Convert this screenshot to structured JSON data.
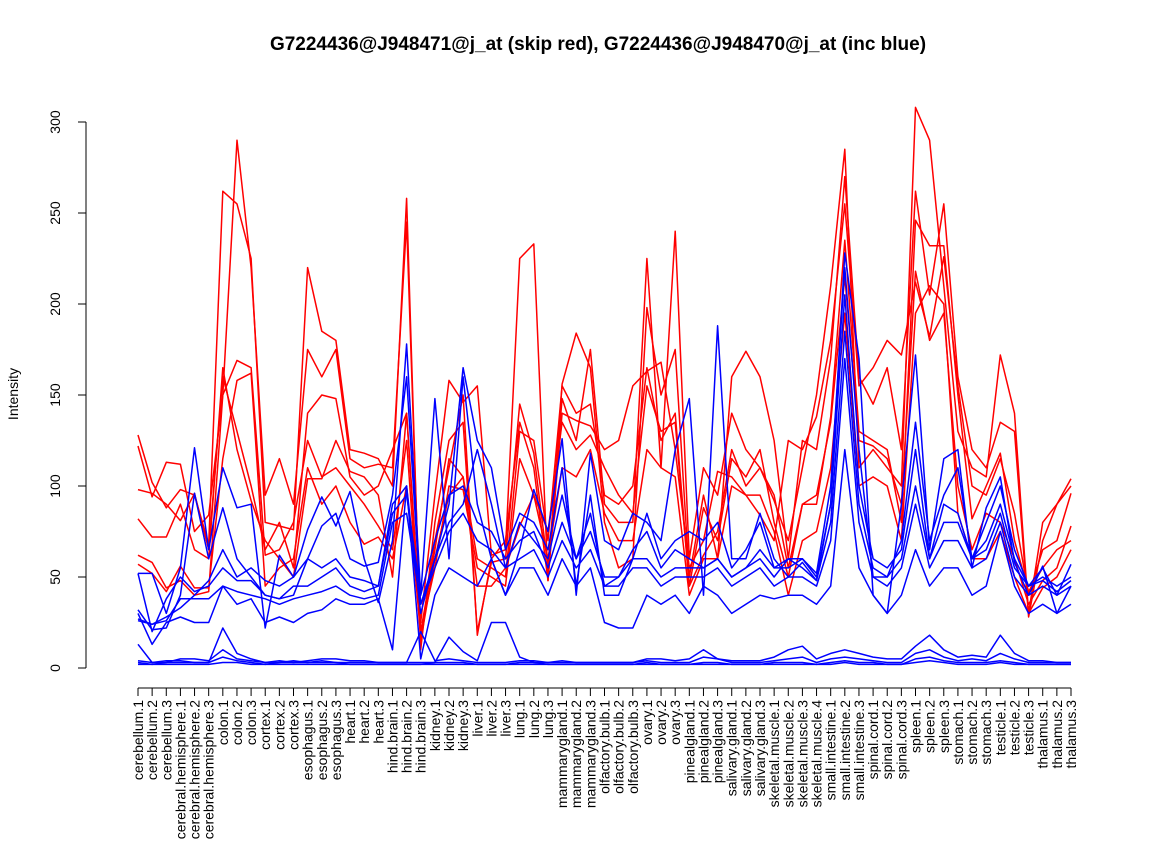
{
  "chart_data": {
    "type": "line",
    "title": "G7224436@J948471@j_at (skip red), G7224436@J948470@j_at (inc blue)",
    "xlabel": "",
    "ylabel": "Intensity",
    "ylim": [
      0,
      300
    ],
    "yticks": [
      0,
      50,
      100,
      150,
      200,
      250,
      300
    ],
    "grid": false,
    "legend": "none",
    "categories": [
      "cerebellum.1",
      "cerebellum.2",
      "cerebellum.3",
      "cerebral.hemisphere.1",
      "cerebral.hemisphere.2",
      "cerebral.hemisphere.3",
      "colon.1",
      "colon.2",
      "colon.3",
      "cortex.1",
      "cortex.2",
      "cortex.3",
      "esophagus.1",
      "esophagus.2",
      "esophagus.3",
      "heart.1",
      "heart.2",
      "heart.3",
      "hind.brain.1",
      "hind.brain.2",
      "hind.brain.3",
      "kidney.1",
      "kidney.2",
      "kidney.3",
      "liver.1",
      "liver.2",
      "liver.3",
      "lung.1",
      "lung.2",
      "lung.3",
      "mammarygland.1",
      "mammarygland.2",
      "mammarygland.3",
      "olfactory.bulb.1",
      "olfactory.bulb.2",
      "olfactory.bulb.3",
      "ovary.1",
      "ovary.2",
      "ovary.3",
      "pinealgland.1",
      "pinealgland.2",
      "pinealgland.3",
      "salivary.gland.1",
      "salivary.gland.2",
      "salivary.gland.3",
      "skeletal.muscle.1",
      "skeletal.muscle.2",
      "skeletal.muscle.3",
      "skeletal.muscle.4",
      "small.intestine.1",
      "small.intestine.2",
      "small.intestine.3",
      "spinal.cord.1",
      "spinal.cord.2",
      "spinal.cord.3",
      "spleen.1",
      "spleen.2",
      "spleen.3",
      "stomach.1",
      "stomach.2",
      "stomach.3",
      "testicle.1",
      "testicle.2",
      "testicle.3",
      "thalamus.1",
      "thalamus.2",
      "thalamus.3"
    ],
    "series": [
      {
        "name": "skip red 1",
        "color": "#ff0000",
        "values": [
          128,
          102,
          88,
          98,
          95,
          68,
          262,
          255,
          225,
          80,
          78,
          76,
          220,
          185,
          180,
          120,
          118,
          115,
          100,
          258,
          10,
          80,
          125,
          135,
          20,
          58,
          60,
          145,
          118,
          55,
          148,
          125,
          175,
          90,
          80,
          80,
          225,
          110,
          240,
          60,
          110,
          95,
          140,
          120,
          110,
          92,
          70,
          110,
          150,
          210,
          285,
          110,
          120,
          110,
          100,
          308,
          290,
          210,
          130,
          110,
          105,
          172,
          140,
          30,
          80,
          90,
          104
        ]
      },
      {
        "name": "skip red 2",
        "color": "#ff0000",
        "values": [
          122,
          94,
          113,
          112,
          75,
          84,
          150,
          290,
          220,
          95,
          115,
          90,
          175,
          160,
          175,
          115,
          110,
          112,
          110,
          245,
          15,
          70,
          110,
          150,
          18,
          60,
          70,
          135,
          110,
          48,
          156,
          184,
          165,
          80,
          55,
          60,
          198,
          150,
          175,
          50,
          95,
          60,
          160,
          174,
          160,
          125,
          60,
          125,
          120,
          170,
          270,
          160,
          145,
          165,
          120,
          262,
          205,
          255,
          160,
          120,
          110,
          135,
          130,
          28,
          70,
          90,
          100
        ]
      },
      {
        "name": "skip red 3",
        "color": "#ff0000",
        "values": [
          98,
          96,
          90,
          81,
          96,
          65,
          160,
          130,
          100,
          65,
          80,
          55,
          140,
          150,
          148,
          105,
          95,
          100,
          120,
          140,
          25,
          95,
          158,
          146,
          155,
          62,
          65,
          225,
          233,
          48,
          140,
          136,
          133,
          120,
          125,
          155,
          163,
          168,
          120,
          55,
          70,
          108,
          105,
          95,
          84,
          70,
          125,
          120,
          138,
          180,
          255,
          155,
          165,
          180,
          172,
          212,
          182,
          226,
          155,
          100,
          95,
          115,
          85,
          40,
          65,
          70,
          96
        ]
      },
      {
        "name": "skip red 4",
        "color": "#ff0000",
        "values": [
          82,
          72,
          72,
          90,
          65,
          60,
          165,
          120,
          92,
          70,
          60,
          50,
          104,
          104,
          125,
          108,
          105,
          95,
          50,
          140,
          20,
          65,
          115,
          105,
          45,
          45,
          55,
          78,
          95,
          75,
          135,
          120,
          128,
          110,
          95,
          85,
          155,
          130,
          135,
          45,
          62,
          75,
          120,
          100,
          110,
          95,
          55,
          90,
          90,
          138,
          235,
          130,
          125,
          120,
          80,
          246,
          232,
          232,
          150,
          82,
          100,
          118,
          70,
          42,
          55,
          65,
          70
        ]
      },
      {
        "name": "skip red 5",
        "color": "#ff0000",
        "values": [
          62,
          58,
          44,
          48,
          40,
          42,
          150,
          169,
          165,
          62,
          65,
          80,
          125,
          105,
          110,
          100,
          90,
          78,
          65,
          125,
          15,
          60,
          95,
          105,
          60,
          55,
          50,
          130,
          125,
          70,
          155,
          140,
          145,
          95,
          90,
          100,
          165,
          125,
          140,
          45,
          88,
          70,
          115,
          105,
          120,
          80,
          50,
          90,
          95,
          135,
          215,
          125,
          122,
          115,
          90,
          218,
          180,
          195,
          100,
          65,
          85,
          80,
          60,
          35,
          48,
          55,
          78
        ]
      },
      {
        "name": "skip red 6",
        "color": "#ff0000",
        "values": [
          57,
          52,
          42,
          56,
          44,
          44,
          115,
          158,
          162,
          45,
          55,
          60,
          110,
          90,
          100,
          80,
          68,
          72,
          60,
          100,
          20,
          55,
          100,
          98,
          55,
          50,
          45,
          115,
          95,
          60,
          110,
          105,
          120,
          85,
          70,
          70,
          120,
          110,
          105,
          40,
          60,
          60,
          100,
          95,
          95,
          75,
          40,
          70,
          75,
          110,
          195,
          100,
          105,
          100,
          70,
          195,
          210,
          200,
          85,
          60,
          60,
          75,
          50,
          30,
          44,
          50,
          65
        ]
      },
      {
        "name": "inc blue 1",
        "color": "#0000ff",
        "values": [
          52,
          52,
          30,
          55,
          121,
          65,
          110,
          88,
          90,
          22,
          62,
          50,
          76,
          94,
          78,
          97,
          60,
          36,
          70,
          178,
          40,
          148,
          60,
          160,
          90,
          60,
          40,
          65,
          98,
          75,
          126,
          40,
          118,
          70,
          65,
          85,
          80,
          70,
          120,
          148,
          40,
          188,
          60,
          60,
          85,
          60,
          50,
          58,
          48,
          90,
          228,
          170,
          40,
          30,
          90,
          172,
          65,
          115,
          120,
          55,
          88,
          105,
          58,
          40,
          56,
          30,
          45
        ]
      },
      {
        "name": "inc blue 2",
        "color": "#0000ff",
        "values": [
          32,
          21,
          22,
          40,
          96,
          60,
          88,
          60,
          50,
          40,
          38,
          40,
          60,
          78,
          85,
          60,
          56,
          58,
          95,
          160,
          35,
          60,
          90,
          165,
          125,
          110,
          65,
          85,
          80,
          65,
          110,
          45,
          95,
          40,
          40,
          60,
          85,
          60,
          70,
          75,
          70,
          80,
          55,
          65,
          80,
          55,
          60,
          60,
          52,
          100,
          220,
          120,
          50,
          50,
          70,
          135,
          70,
          95,
          110,
          60,
          80,
          100,
          65,
          45,
          55,
          40,
          57
        ]
      },
      {
        "name": "inc blue 3",
        "color": "#0000ff",
        "values": [
          27,
          24,
          28,
          33,
          40,
          48,
          65,
          50,
          55,
          48,
          45,
          50,
          60,
          55,
          60,
          50,
          48,
          45,
          90,
          100,
          30,
          60,
          80,
          90,
          120,
          90,
          55,
          80,
          70,
          60,
          95,
          60,
          85,
          45,
          50,
          65,
          75,
          55,
          65,
          60,
          55,
          60,
          50,
          55,
          65,
          55,
          55,
          60,
          50,
          90,
          205,
          100,
          60,
          55,
          65,
          120,
          60,
          90,
          85,
          60,
          70,
          90,
          60,
          45,
          50,
          45,
          50
        ]
      },
      {
        "name": "inc blue 4",
        "color": "#0000ff",
        "values": [
          52,
          20,
          38,
          50,
          42,
          45,
          55,
          48,
          48,
          40,
          38,
          45,
          45,
          50,
          55,
          45,
          42,
          45,
          85,
          95,
          40,
          70,
          95,
          100,
          80,
          75,
          60,
          70,
          75,
          55,
          80,
          60,
          75,
          50,
          50,
          60,
          60,
          50,
          55,
          55,
          55,
          60,
          50,
          55,
          60,
          50,
          60,
          55,
          48,
          80,
          185,
          90,
          55,
          50,
          60,
          100,
          60,
          80,
          80,
          60,
          65,
          85,
          55,
          45,
          48,
          42,
          48
        ]
      },
      {
        "name": "inc blue 5",
        "color": "#0000ff",
        "values": [
          26,
          24,
          26,
          38,
          38,
          38,
          45,
          42,
          40,
          38,
          35,
          38,
          40,
          42,
          45,
          40,
          38,
          40,
          80,
          85,
          35,
          55,
          75,
          85,
          70,
          65,
          55,
          60,
          65,
          50,
          70,
          55,
          65,
          45,
          45,
          55,
          55,
          45,
          50,
          50,
          50,
          55,
          45,
          50,
          55,
          45,
          50,
          50,
          45,
          70,
          170,
          80,
          50,
          45,
          55,
          90,
          55,
          70,
          70,
          55,
          60,
          80,
          50,
          40,
          45,
          40,
          45
        ]
      },
      {
        "name": "inc blue 6",
        "color": "#0000ff",
        "values": [
          30,
          13,
          25,
          28,
          25,
          25,
          45,
          35,
          38,
          25,
          28,
          25,
          30,
          32,
          38,
          35,
          35,
          38,
          10,
          100,
          5,
          40,
          55,
          50,
          45,
          60,
          40,
          55,
          55,
          40,
          60,
          45,
          55,
          25,
          22,
          22,
          40,
          35,
          40,
          30,
          45,
          40,
          30,
          35,
          40,
          38,
          40,
          40,
          35,
          45,
          120,
          55,
          40,
          30,
          40,
          65,
          45,
          55,
          55,
          40,
          45,
          75,
          45,
          30,
          35,
          30,
          35
        ]
      },
      {
        "name": "inc blue 7",
        "color": "#0000ff",
        "values": [
          13,
          3,
          4,
          4,
          3,
          3,
          22,
          8,
          5,
          3,
          4,
          3,
          4,
          5,
          5,
          4,
          4,
          3,
          3,
          3,
          3,
          3,
          17,
          9,
          4,
          25,
          25,
          6,
          3,
          3,
          4,
          3,
          3,
          3,
          3,
          3,
          5,
          5,
          4,
          5,
          10,
          5,
          4,
          4,
          4,
          6,
          10,
          12,
          5,
          8,
          10,
          8,
          6,
          5,
          5,
          12,
          18,
          10,
          6,
          7,
          6,
          18,
          8,
          4,
          4,
          3,
          3
        ]
      },
      {
        "name": "inc blue 8",
        "color": "#0000ff",
        "values": [
          4,
          3,
          3,
          5,
          5,
          4,
          10,
          5,
          4,
          3,
          3,
          4,
          3,
          4,
          3,
          3,
          3,
          3,
          3,
          3,
          20,
          4,
          5,
          4,
          3,
          3,
          3,
          4,
          4,
          3,
          3,
          3,
          3,
          3,
          3,
          3,
          4,
          3,
          3,
          3,
          6,
          5,
          3,
          3,
          3,
          4,
          5,
          6,
          3,
          5,
          6,
          5,
          4,
          3,
          3,
          8,
          10,
          6,
          4,
          5,
          4,
          8,
          5,
          3,
          3,
          3,
          3
        ]
      },
      {
        "name": "inc blue 9",
        "color": "#0000ff",
        "values": [
          3,
          2,
          3,
          3,
          3,
          3,
          6,
          4,
          3,
          2,
          3,
          3,
          3,
          3,
          3,
          2,
          2,
          2,
          2,
          2,
          2,
          3,
          3,
          3,
          2,
          2,
          2,
          3,
          3,
          2,
          2,
          2,
          2,
          2,
          2,
          2,
          3,
          2,
          2,
          2,
          3,
          3,
          2,
          2,
          2,
          3,
          3,
          3,
          2,
          3,
          4,
          3,
          3,
          2,
          2,
          5,
          6,
          4,
          3,
          3,
          3,
          4,
          3,
          2,
          2,
          2,
          2
        ]
      },
      {
        "name": "inc blue 10",
        "color": "#0000ff",
        "values": [
          2,
          2,
          2,
          2,
          2,
          2,
          3,
          3,
          2,
          2,
          2,
          2,
          2,
          2,
          2,
          2,
          2,
          2,
          2,
          2,
          2,
          2,
          2,
          2,
          2,
          2,
          2,
          2,
          2,
          2,
          2,
          2,
          2,
          2,
          2,
          2,
          2,
          2,
          2,
          2,
          2,
          2,
          2,
          2,
          2,
          2,
          2,
          2,
          2,
          2,
          3,
          2,
          2,
          2,
          2,
          3,
          4,
          3,
          2,
          2,
          2,
          3,
          2,
          2,
          2,
          2,
          2
        ]
      }
    ]
  }
}
